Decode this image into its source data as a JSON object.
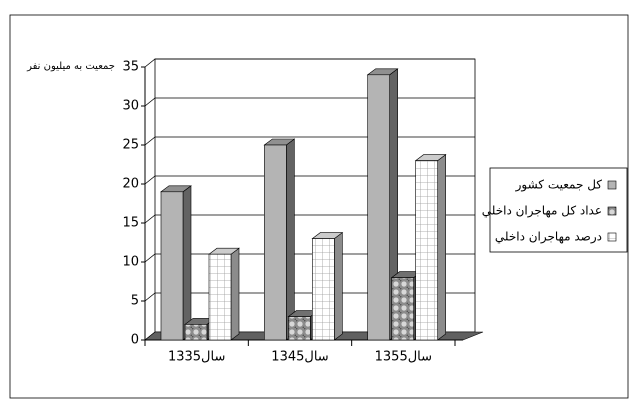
{
  "chart_data": {
    "type": "bar3d",
    "y_label": "جمعيت به ميليون نفر",
    "categories": [
      "سال1335",
      "سال1345",
      "سال1355"
    ],
    "series": [
      {
        "name": "كل جمعيت كشور",
        "color": "#b4b4b4",
        "pattern": "solid",
        "values": [
          19,
          25,
          34
        ]
      },
      {
        "name": "عداد كل مهاجران داخلي",
        "color": "#8c8c8c",
        "pattern": "checker",
        "values": [
          2,
          3,
          8
        ]
      },
      {
        "name": "درصد مهاجران داخلي",
        "color": "#ffffff",
        "pattern": "grid",
        "values": [
          11,
          13,
          23
        ]
      }
    ],
    "ylim": [
      0,
      35
    ],
    "yticks": [
      0,
      5,
      10,
      15,
      20,
      25,
      30,
      35
    ],
    "grid": true
  }
}
